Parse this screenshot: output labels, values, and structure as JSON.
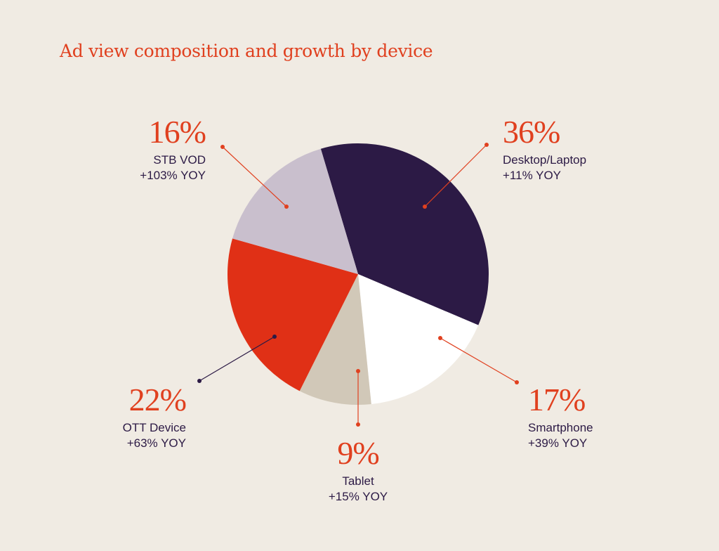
{
  "chart_data": {
    "type": "pie",
    "title": "Ad view composition and growth by device",
    "slices": [
      {
        "label": "Desktop/Laptop",
        "value": 36,
        "value_label": "36%",
        "growth": "+11% YOY",
        "color": "#2c1a45"
      },
      {
        "label": "Smartphone",
        "value": 17,
        "value_label": "17%",
        "growth": "+39% YOY",
        "color": "#ffffff"
      },
      {
        "label": "Tablet",
        "value": 9,
        "value_label": "9%",
        "growth": "+15% YOY",
        "color": "#d1c8b8"
      },
      {
        "label": "OTT Device",
        "value": 22,
        "value_label": "22%",
        "growth": "+63% YOY",
        "color": "#e03016"
      },
      {
        "label": "STB VOD",
        "value": 16,
        "value_label": "16%",
        "growth": "+103% YOY",
        "color": "#c9bfcd"
      }
    ],
    "legend": "none",
    "accent_color": "#e0401f",
    "background_color": "#f0ebe3"
  }
}
